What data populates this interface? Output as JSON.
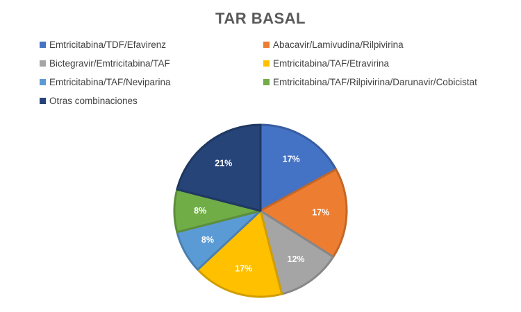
{
  "chart_data": {
    "type": "pie",
    "title": "TAR BASAL",
    "legend_position": "top",
    "slices": [
      {
        "name": "Emtricitabina/TDF/Efavirenz",
        "value": 17,
        "label": "17%",
        "color": "#4472C4"
      },
      {
        "name": "Abacavir/Lamivudina/Rilpivirina",
        "value": 17,
        "label": "17%",
        "color": "#ED7D31"
      },
      {
        "name": "Bictegravir/Emtricitabina/TAF",
        "value": 12,
        "label": "12%",
        "color": "#A5A5A5"
      },
      {
        "name": "Emtricitabina/TAF/Etravirina",
        "value": 17,
        "label": "17%",
        "color": "#FFC000"
      },
      {
        "name": "Emtricitabina/TAF/Neviparina",
        "value": 8,
        "label": "8%",
        "color": "#5B9BD5"
      },
      {
        "name": "Emtricitabina/TAF/Rilpivirina/Darunavir/Cobicistat",
        "value": 8,
        "label": "8%",
        "color": "#70AD47"
      },
      {
        "name": "Otras combinaciones",
        "value": 21,
        "label": "21%",
        "color": "#264478"
      }
    ]
  }
}
